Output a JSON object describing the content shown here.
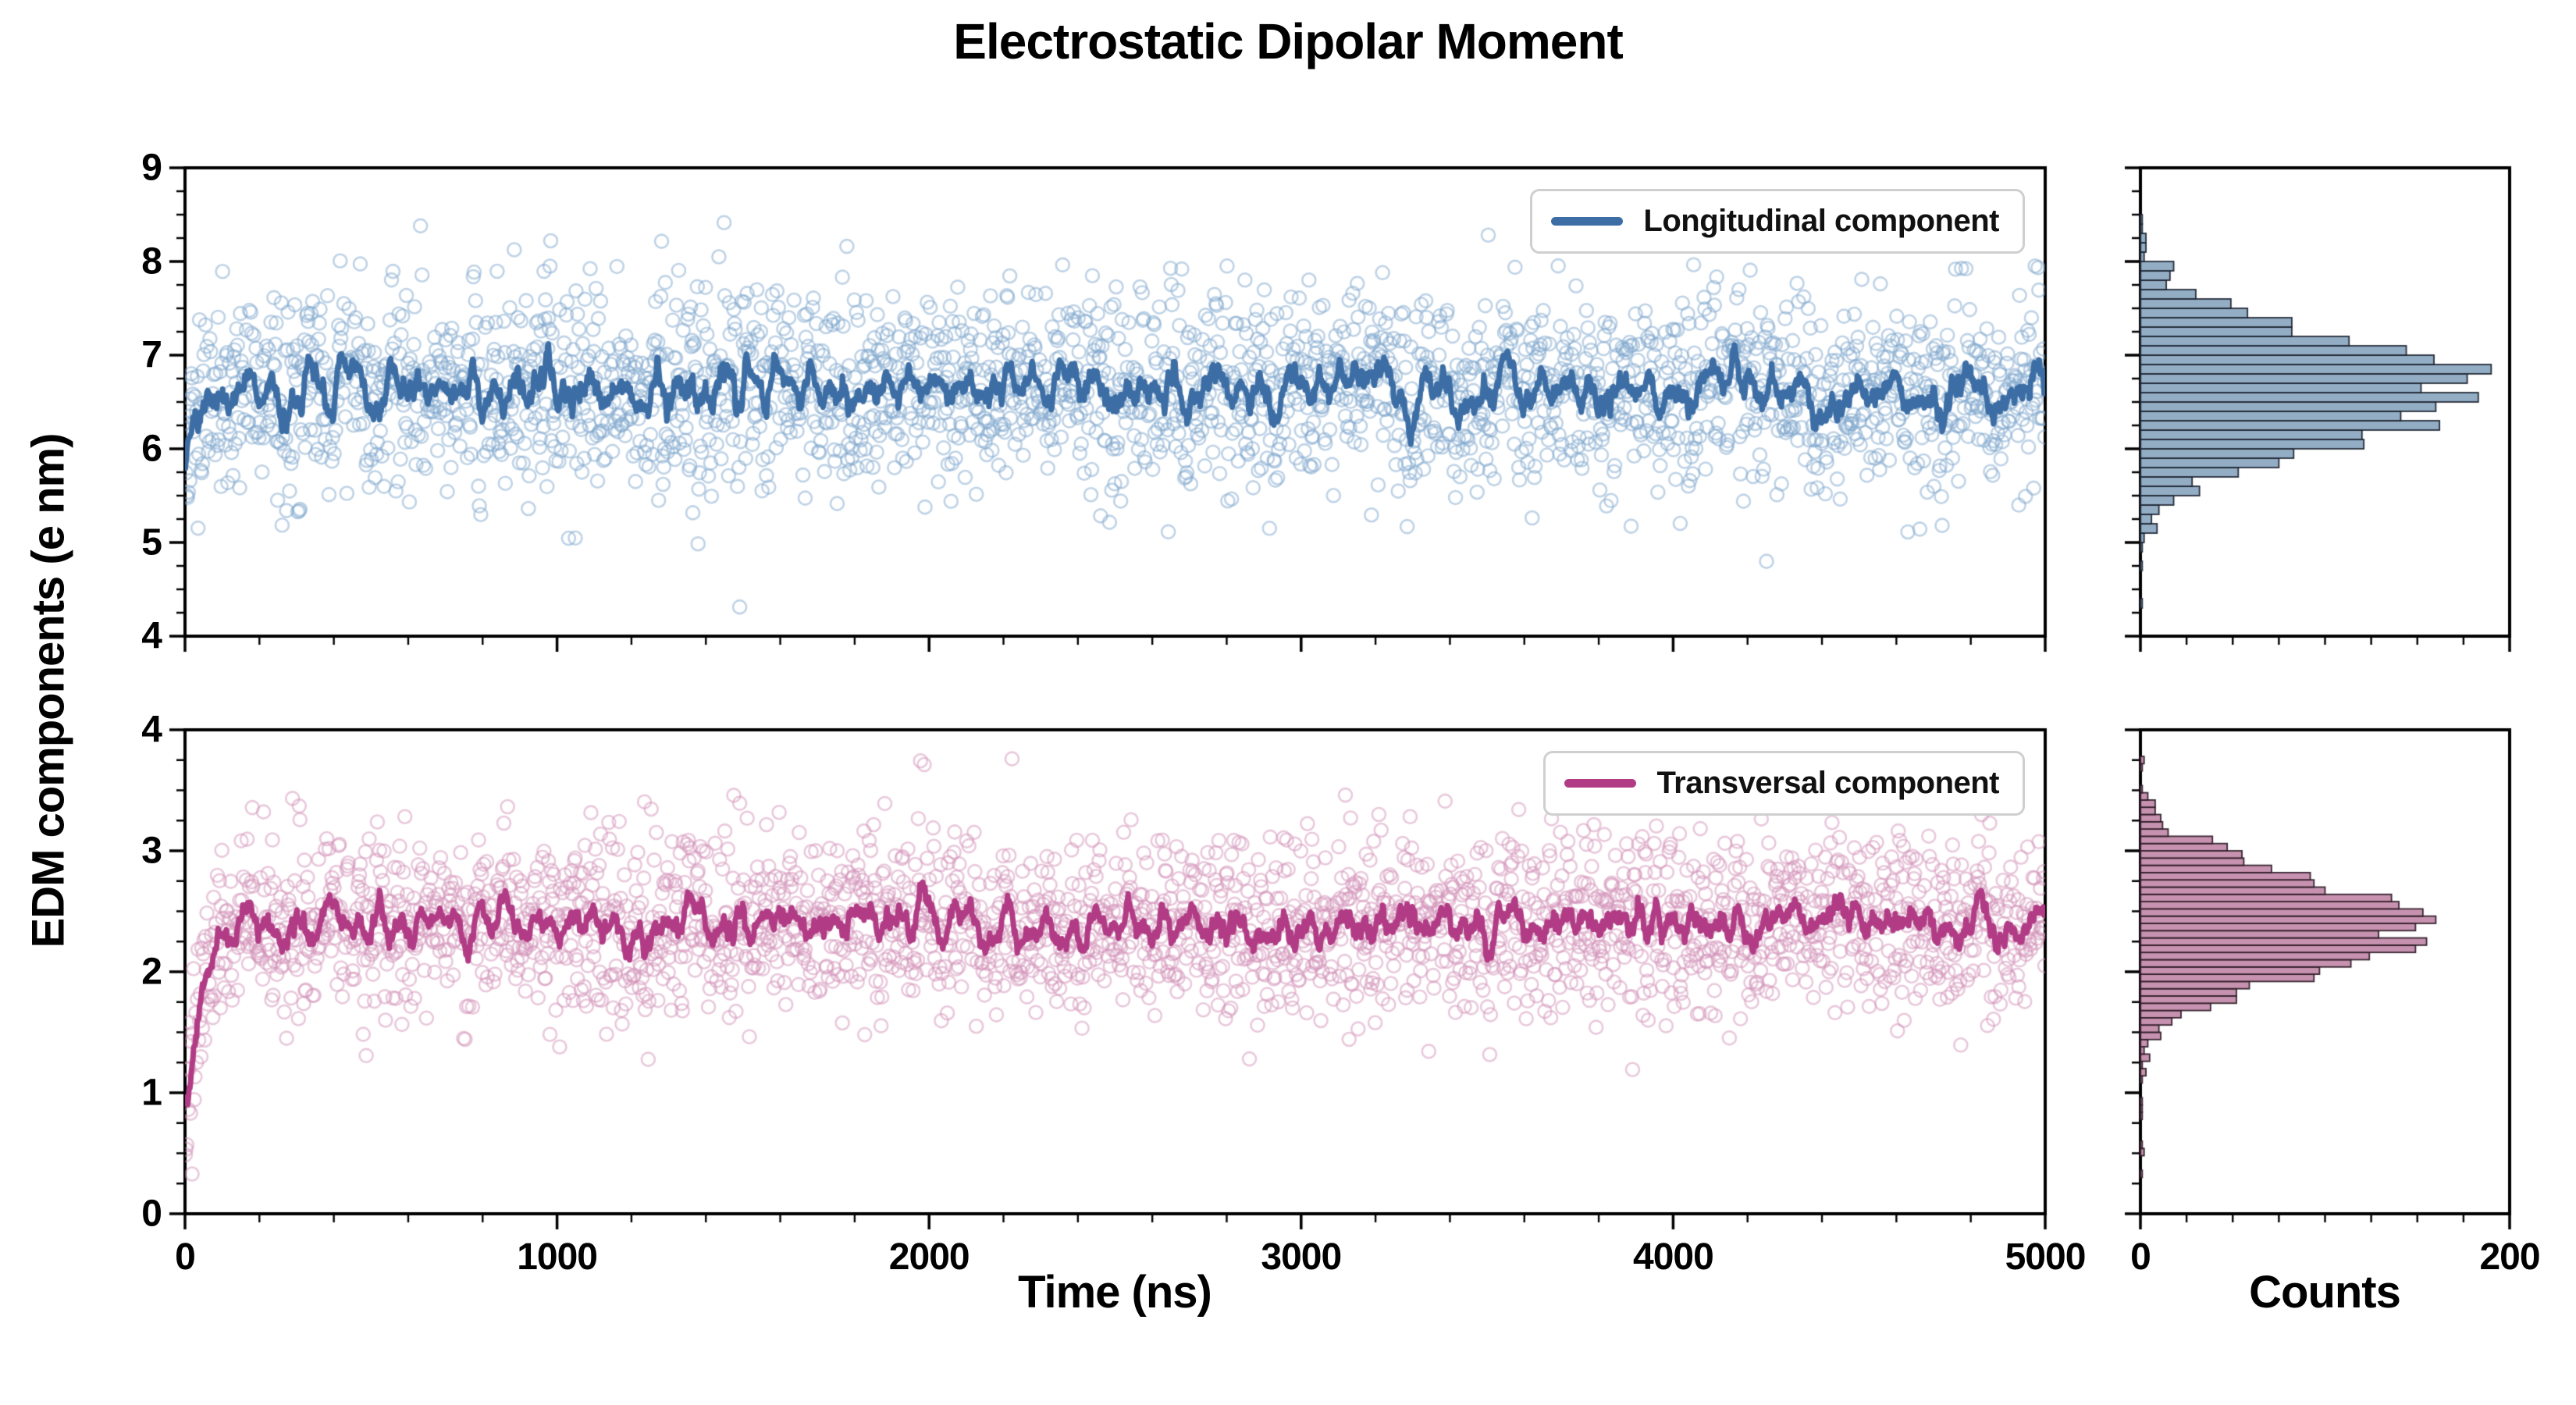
{
  "title": "Electrostatic Dipolar Moment",
  "ylabel": "EDM components (e nm)",
  "xlabels": {
    "time": "Time (ns)",
    "counts": "Counts"
  },
  "chart_data": [
    {
      "type": "scatter+line+histogram",
      "name": "longitudinal",
      "legend": "Longitudinal component",
      "x": {
        "range": [
          0,
          5000
        ],
        "ticks": [
          0,
          1000,
          2000,
          3000,
          4000,
          5000
        ],
        "minor_step": 200
      },
      "y": {
        "range": [
          4,
          9
        ],
        "ticks": [
          4,
          5,
          6,
          7,
          8,
          9
        ],
        "minor_step": 0.25
      },
      "counts_axis": {
        "range": [
          0,
          200
        ],
        "ticks": [
          0,
          200
        ],
        "minor_step": 25
      },
      "series": {
        "n_points": 2500,
        "mean": 6.62,
        "std": 0.55,
        "transient_delta": -0.75,
        "transient_tau": 22,
        "line_halfwidth": 6,
        "seed": 1337
      },
      "histogram": {
        "bin_width": 0.1
      },
      "colors": {
        "line": "#3c6ea5",
        "scatter": "#7fa8cd",
        "hist_fill": "#8aa6c0",
        "hist_edge": "#1c2430"
      }
    },
    {
      "type": "scatter+line+histogram",
      "name": "transversal",
      "legend": "Transversal component",
      "x": {
        "range": [
          0,
          5000
        ],
        "ticks": [
          0,
          1000,
          2000,
          3000,
          4000,
          5000
        ],
        "minor_step": 200
      },
      "y": {
        "range": [
          0,
          4
        ],
        "ticks": [
          0,
          1,
          2,
          3,
          4
        ],
        "minor_step": 0.25
      },
      "counts_axis": {
        "range": [
          0,
          200
        ],
        "ticks": [
          0,
          200
        ],
        "minor_step": 25
      },
      "series": {
        "n_points": 2500,
        "mean": 2.38,
        "std": 0.38,
        "transient_delta": -1.9,
        "transient_tau": 28,
        "line_halfwidth": 6,
        "seed": 2024
      },
      "histogram": {
        "bin_width": 0.06
      },
      "colors": {
        "line": "#b13c85",
        "scatter": "#d493b9",
        "hist_fill": "#c289a8",
        "hist_edge": "#2e1c28"
      }
    }
  ]
}
